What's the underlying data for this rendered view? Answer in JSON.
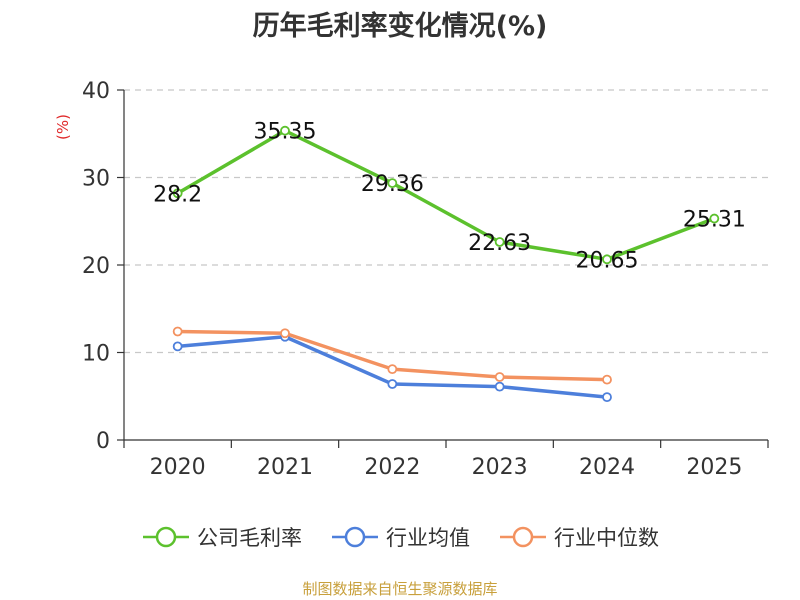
{
  "chart_data": {
    "type": "line",
    "title": "历年毛利率变化情况(%)",
    "ylabel": "(%)",
    "xlabel": "",
    "categories": [
      "2020",
      "2021",
      "2022",
      "2023",
      "2024",
      "2025"
    ],
    "ylim": [
      0,
      40
    ],
    "yticks": [
      0,
      10,
      20,
      30,
      40
    ],
    "grid": true,
    "legend_position": "bottom",
    "series": [
      {
        "name": "公司毛利率",
        "color": "#5cc12d",
        "values": [
          28.2,
          35.35,
          29.36,
          22.63,
          20.65,
          25.31
        ],
        "labels": [
          "28.2",
          "35.35",
          "29.36",
          "22.63",
          "20.65",
          "25.31"
        ]
      },
      {
        "name": "行业均值",
        "color": "#4d7fdb",
        "values": [
          10.7,
          11.8,
          6.4,
          6.1,
          4.9,
          null
        ]
      },
      {
        "name": "行业中位数",
        "color": "#f39260",
        "values": [
          12.4,
          12.2,
          8.1,
          7.2,
          6.9,
          null
        ]
      }
    ],
    "source": "制图数据来自恒生聚源数据库"
  }
}
